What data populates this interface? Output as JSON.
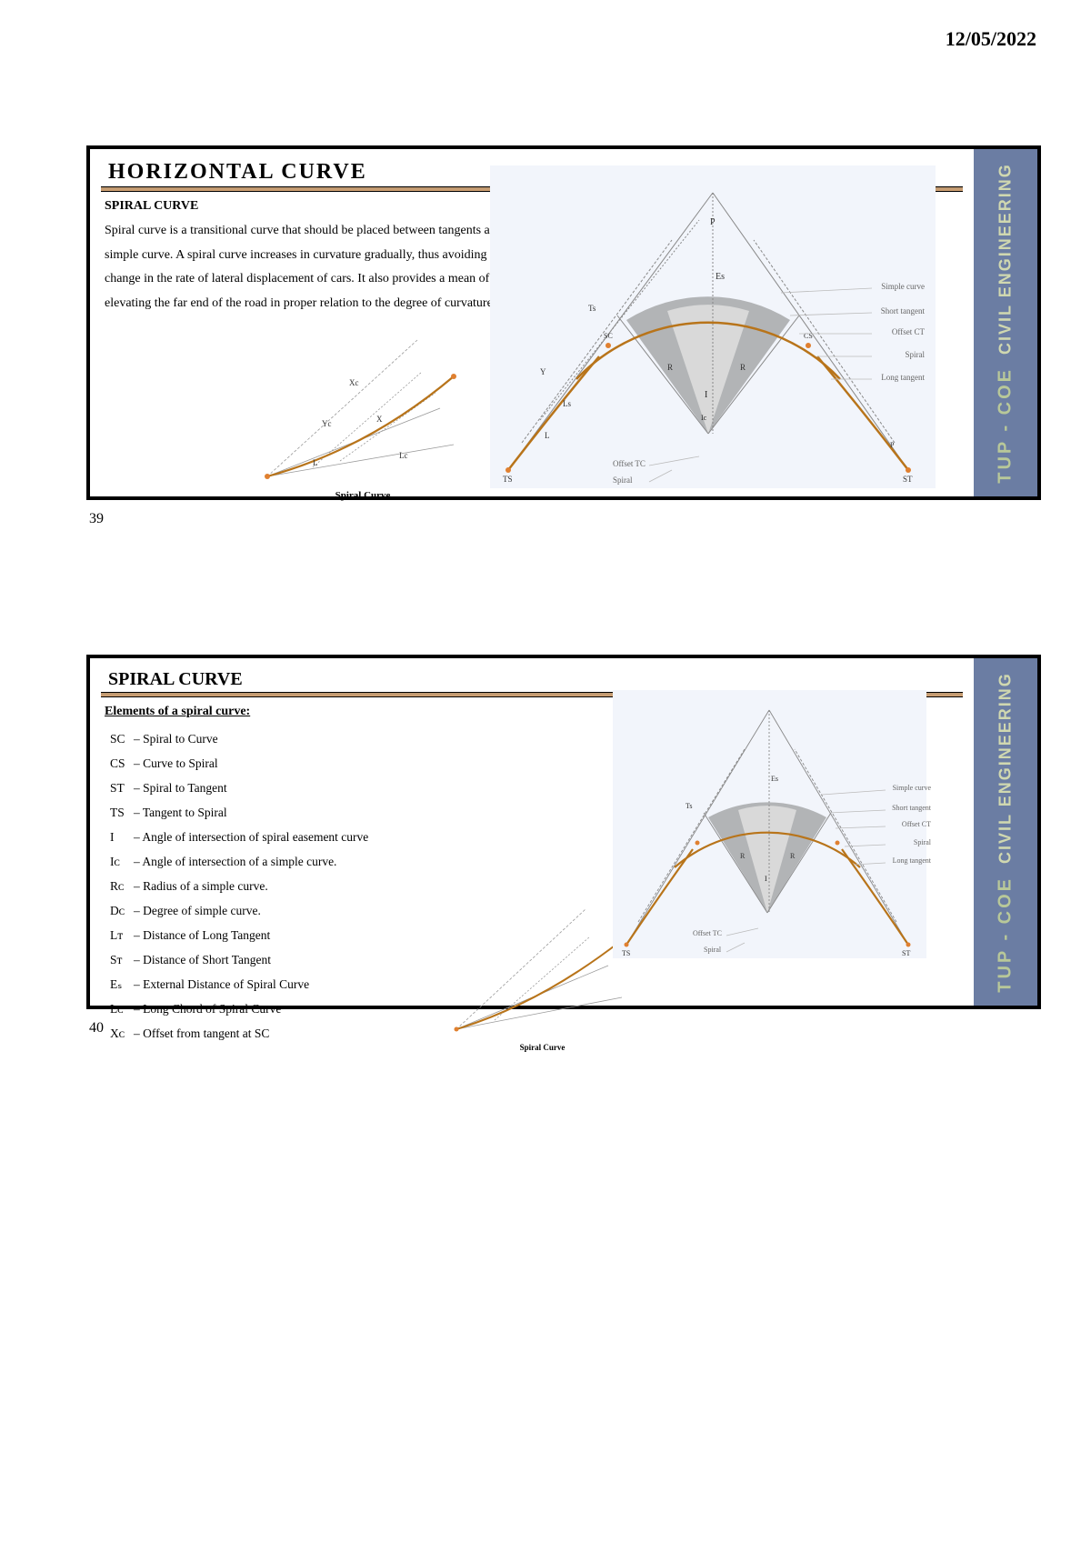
{
  "date": "12/05/2022",
  "sidebar": {
    "line1": "TUP - COE",
    "line2": "CIVIL ENGINEERING"
  },
  "slide1": {
    "title": "HORIZONTAL CURVE",
    "subtitle": "SPIRAL CURVE",
    "paragraph": "Spiral curve is a transitional curve that should be placed between tangents and each end of a simple curve. A spiral curve increases in curvature gradually, thus avoiding an abrupt change in the rate of lateral displacement of cars. It also provides a mean of gradually elevating the far end of the road in proper relation to the degree of curvature.",
    "caption_small": "Spiral Curve",
    "legend": {
      "l0": "Simple curve",
      "l1": "Short tangent",
      "l2": "Offset CT",
      "l3": "Spiral",
      "l4": "Long tangent",
      "l5": "Offset TC",
      "l6": "Spiral"
    },
    "num": "39"
  },
  "slide2": {
    "title": "SPIRAL CURVE",
    "subtitle": "Elements of a spiral curve:",
    "elements": [
      {
        "sym": "SC",
        "desc": "Spiral to Curve"
      },
      {
        "sym": "CS",
        "desc": "Curve to Spiral"
      },
      {
        "sym": "ST",
        "desc": "Spiral to Tangent"
      },
      {
        "sym": "TS",
        "desc": "Tangent to Spiral"
      },
      {
        "sym": "I",
        "desc": "Angle of intersection of spiral easement curve"
      },
      {
        "sym": "Iᴄ",
        "desc": "Angle of intersection of a simple curve."
      },
      {
        "sym": "Rᴄ",
        "desc": "Radius of a simple curve."
      },
      {
        "sym": "Dᴄ",
        "desc": "Degree of simple curve."
      },
      {
        "sym": "Lᴛ",
        "desc": "Distance of Long Tangent"
      },
      {
        "sym": "Sᴛ",
        "desc": "Distance of Short Tangent"
      },
      {
        "sym": "Eₛ",
        "desc": "External Distance of Spiral Curve"
      },
      {
        "sym": "Lᴄ",
        "desc": "Long Chord of Spiral Curve"
      },
      {
        "sym": "Xᴄ",
        "desc": "Offset from tangent at SC"
      }
    ],
    "caption_small": "Spiral Curve",
    "legend": {
      "l0": "Simple curve",
      "l1": "Short tangent",
      "l2": "Offset CT",
      "l3": "Spiral",
      "l4": "Long tangent",
      "l5": "Offset TC",
      "l6": "Spiral"
    },
    "num": "40"
  },
  "colors": {
    "sidebar_bg": "#6b7da3",
    "sidebar_text1": "#b8c899",
    "sidebar_text2": "#d0d8b0",
    "accent_rule": "#d4a373",
    "curve_color": "#b8741a",
    "shade_dark": "#7d7d7d",
    "shade_light": "#d9d9d9",
    "diag_bg": "#f2f5fb"
  }
}
